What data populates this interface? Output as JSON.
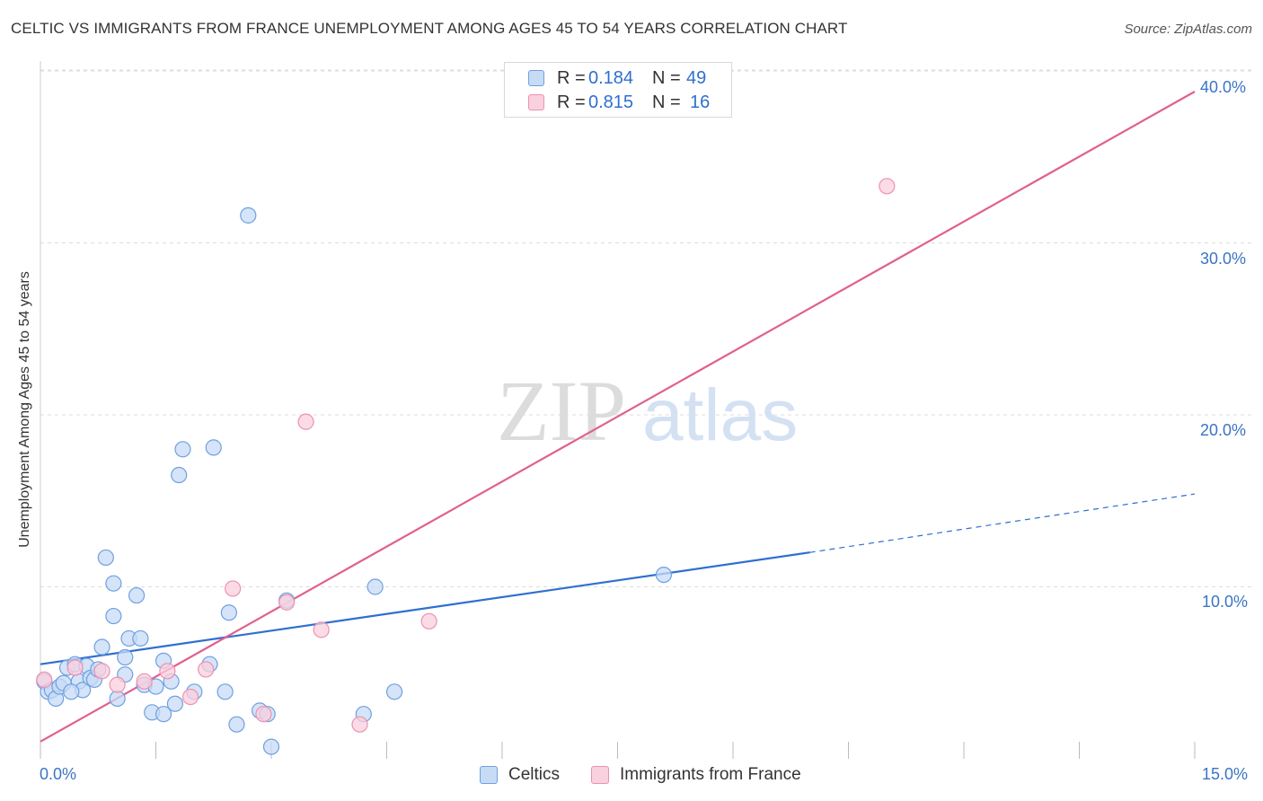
{
  "header": {
    "title": "CELTIC VS IMMIGRANTS FROM FRANCE UNEMPLOYMENT AMONG AGES 45 TO 54 YEARS CORRELATION CHART",
    "source": "Source: ZipAtlas.com"
  },
  "watermark": {
    "zip": "ZIP",
    "atlas": "atlas"
  },
  "legend_top": {
    "rows": [
      {
        "r_label": "R =",
        "r_value": "0.184",
        "n_label": "N =",
        "n_value": "49",
        "color": "#aac8f0"
      },
      {
        "r_label": "R =",
        "r_value": "0.815",
        "n_label": "N =",
        "n_value": "16",
        "color": "#f7bcd0"
      }
    ]
  },
  "legend_bottom": {
    "items": [
      {
        "label": "Celtics",
        "color": "#aac8f0"
      },
      {
        "label": "Immigrants from France",
        "color": "#f7bcd0"
      }
    ]
  },
  "axes": {
    "x_min_label": "0.0%",
    "x_max_label": "15.0%",
    "y_tick_labels": [
      "10.0%",
      "20.0%",
      "30.0%",
      "40.0%"
    ],
    "ylabel": "Unemployment Among Ages 45 to 54 years"
  },
  "chart_data": {
    "type": "scatter",
    "title": "CELTIC VS IMMIGRANTS FROM FRANCE UNEMPLOYMENT AMONG AGES 45 TO 54 YEARS CORRELATION CHART",
    "xlabel": "",
    "ylabel": "Unemployment Among Ages 45 to 54 years",
    "xlim": [
      0,
      15
    ],
    "ylim": [
      0,
      41
    ],
    "x_ticks": [
      0,
      1.5,
      3,
      4.5,
      6,
      7.5,
      9,
      10.5,
      12,
      13.5,
      15
    ],
    "y_ticks": [
      10,
      20,
      30,
      40
    ],
    "grid": true,
    "series": [
      {
        "name": "Celtics",
        "color": "#6fa0e0",
        "fill": "#c7dbf5",
        "points": [
          [
            0.05,
            4.5
          ],
          [
            0.1,
            3.9
          ],
          [
            0.15,
            4.0
          ],
          [
            0.2,
            3.5
          ],
          [
            0.25,
            4.2
          ],
          [
            0.3,
            4.4
          ],
          [
            0.35,
            5.3
          ],
          [
            0.45,
            5.5
          ],
          [
            0.5,
            4.5
          ],
          [
            0.55,
            4.0
          ],
          [
            0.6,
            5.4
          ],
          [
            0.65,
            4.7
          ],
          [
            0.7,
            4.6
          ],
          [
            0.75,
            5.2
          ],
          [
            0.8,
            6.5
          ],
          [
            0.85,
            11.7
          ],
          [
            0.95,
            8.3
          ],
          [
            0.95,
            10.2
          ],
          [
            1.0,
            3.5
          ],
          [
            1.1,
            5.9
          ],
          [
            1.1,
            4.9
          ],
          [
            1.15,
            7.0
          ],
          [
            1.25,
            9.5
          ],
          [
            1.3,
            7.0
          ],
          [
            1.35,
            4.3
          ],
          [
            1.45,
            2.7
          ],
          [
            1.5,
            4.2
          ],
          [
            1.6,
            2.6
          ],
          [
            1.6,
            5.7
          ],
          [
            1.7,
            4.5
          ],
          [
            1.75,
            3.2
          ],
          [
            1.8,
            16.5
          ],
          [
            1.85,
            18.0
          ],
          [
            2.0,
            3.9
          ],
          [
            2.2,
            5.5
          ],
          [
            2.25,
            18.1
          ],
          [
            2.4,
            3.9
          ],
          [
            2.45,
            8.5
          ],
          [
            2.55,
            2.0
          ],
          [
            2.7,
            31.6
          ],
          [
            2.85,
            2.8
          ],
          [
            2.95,
            2.6
          ],
          [
            3.0,
            0.7
          ],
          [
            3.2,
            9.2
          ],
          [
            4.2,
            2.6
          ],
          [
            4.35,
            10.0
          ],
          [
            4.6,
            3.9
          ],
          [
            8.1,
            10.7
          ],
          [
            0.4,
            3.9
          ]
        ]
      },
      {
        "name": "Immigrants from France",
        "color": "#ee90b0",
        "fill": "#f9d0de",
        "points": [
          [
            0.05,
            4.6
          ],
          [
            0.45,
            5.3
          ],
          [
            0.8,
            5.1
          ],
          [
            1.0,
            4.3
          ],
          [
            1.35,
            4.5
          ],
          [
            1.65,
            5.1
          ],
          [
            1.95,
            3.6
          ],
          [
            2.15,
            5.2
          ],
          [
            2.5,
            9.9
          ],
          [
            2.9,
            2.6
          ],
          [
            3.2,
            9.1
          ],
          [
            3.45,
            19.6
          ],
          [
            3.65,
            7.5
          ],
          [
            4.15,
            2.0
          ],
          [
            5.05,
            8.0
          ],
          [
            11.0,
            33.3
          ]
        ]
      }
    ],
    "trendlines": [
      {
        "series": "Celtics",
        "x0": 0,
        "y0": 5.5,
        "x1": 10.0,
        "y1": 12.0,
        "dashed_to_x": 15.0,
        "dashed_to_y": 15.4,
        "color": "#2f6fcf"
      },
      {
        "series": "Immigrants from France",
        "x0": 0,
        "y0": 1.0,
        "x1": 15.0,
        "y1": 38.8,
        "color": "#e0608f"
      }
    ]
  }
}
